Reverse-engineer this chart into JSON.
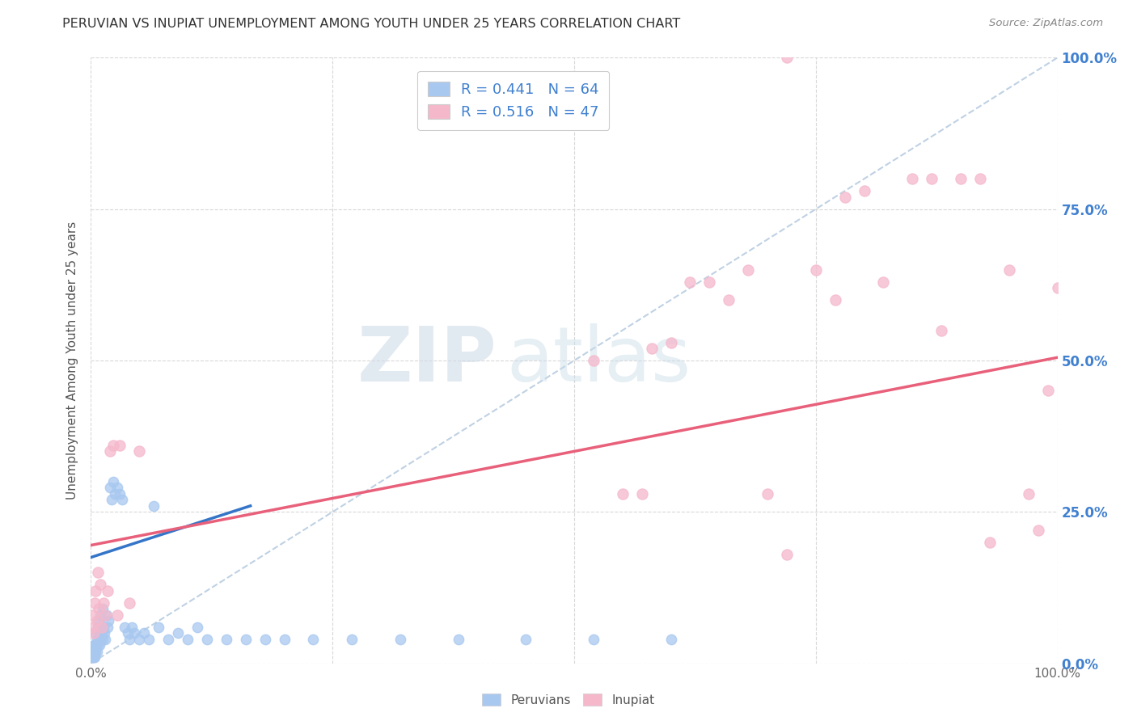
{
  "title": "PERUVIAN VS INUPIAT UNEMPLOYMENT AMONG YOUTH UNDER 25 YEARS CORRELATION CHART",
  "source": "Source: ZipAtlas.com",
  "ylabel": "Unemployment Among Youth under 25 years",
  "watermark_zip": "ZIP",
  "watermark_atlas": "atlas",
  "xlim": [
    0,
    1
  ],
  "ylim": [
    0,
    1
  ],
  "xtick_positions": [
    0.0,
    0.25,
    0.5,
    0.75,
    1.0
  ],
  "xtick_labels": [
    "0.0%",
    "",
    "",
    "",
    "100.0%"
  ],
  "ytick_positions": [
    0.0,
    0.25,
    0.5,
    0.75,
    1.0
  ],
  "right_ytick_labels": [
    "0.0%",
    "25.0%",
    "50.0%",
    "75.0%",
    "100.0%"
  ],
  "legend_R1": "R = 0.441",
  "legend_N1": "N = 64",
  "legend_R2": "R = 0.516",
  "legend_N2": "N = 47",
  "peruvian_color": "#a8c8f0",
  "inupiat_color": "#f5b8cb",
  "peruvian_line_color": "#3575c8",
  "inupiat_line_color": "#e8607a",
  "diagonal_color": "#b8cce0",
  "background_color": "#ffffff",
  "grid_color": "#d8d8d8",
  "title_color": "#333333",
  "right_tick_color": "#4080d0",
  "watermark_zip_color": "#d0dce8",
  "watermark_atlas_color": "#c8dce8",
  "peru_line_x0": 0.0,
  "peru_line_x1": 0.165,
  "peru_line_y0": 0.175,
  "peru_line_y1": 0.26,
  "inupiat_line_x0": 0.0,
  "inupiat_line_x1": 1.0,
  "inupiat_line_y0": 0.195,
  "inupiat_line_y1": 0.505,
  "peruvians_x": [
    0.001,
    0.002,
    0.002,
    0.003,
    0.003,
    0.003,
    0.004,
    0.004,
    0.004,
    0.005,
    0.005,
    0.005,
    0.006,
    0.006,
    0.007,
    0.007,
    0.008,
    0.008,
    0.009,
    0.009,
    0.01,
    0.01,
    0.011,
    0.012,
    0.012,
    0.013,
    0.014,
    0.015,
    0.016,
    0.017,
    0.018,
    0.02,
    0.021,
    0.023,
    0.025,
    0.027,
    0.03,
    0.032,
    0.035,
    0.038,
    0.04,
    0.042,
    0.045,
    0.05,
    0.055,
    0.06,
    0.065,
    0.07,
    0.08,
    0.09,
    0.1,
    0.11,
    0.12,
    0.14,
    0.16,
    0.18,
    0.2,
    0.23,
    0.27,
    0.32,
    0.38,
    0.45,
    0.52,
    0.6
  ],
  "peruvians_y": [
    0.01,
    0.01,
    0.02,
    0.01,
    0.02,
    0.03,
    0.01,
    0.02,
    0.03,
    0.02,
    0.03,
    0.05,
    0.02,
    0.04,
    0.03,
    0.06,
    0.04,
    0.07,
    0.03,
    0.05,
    0.04,
    0.08,
    0.05,
    0.04,
    0.09,
    0.06,
    0.05,
    0.04,
    0.08,
    0.06,
    0.07,
    0.29,
    0.27,
    0.3,
    0.28,
    0.29,
    0.28,
    0.27,
    0.06,
    0.05,
    0.04,
    0.06,
    0.05,
    0.04,
    0.05,
    0.04,
    0.26,
    0.06,
    0.04,
    0.05,
    0.04,
    0.06,
    0.04,
    0.04,
    0.04,
    0.04,
    0.04,
    0.04,
    0.04,
    0.04,
    0.04,
    0.04,
    0.04,
    0.04
  ],
  "inupiat_x": [
    0.001,
    0.002,
    0.003,
    0.004,
    0.005,
    0.006,
    0.007,
    0.008,
    0.01,
    0.011,
    0.013,
    0.015,
    0.017,
    0.02,
    0.023,
    0.027,
    0.03,
    0.04,
    0.05,
    0.52,
    0.55,
    0.57,
    0.58,
    0.6,
    0.62,
    0.64,
    0.66,
    0.68,
    0.7,
    0.72,
    0.72,
    0.75,
    0.77,
    0.78,
    0.8,
    0.82,
    0.85,
    0.87,
    0.88,
    0.9,
    0.92,
    0.93,
    0.95,
    0.97,
    0.98,
    0.99,
    1.0
  ],
  "inupiat_y": [
    0.06,
    0.08,
    0.05,
    0.1,
    0.12,
    0.07,
    0.15,
    0.09,
    0.13,
    0.06,
    0.1,
    0.08,
    0.12,
    0.35,
    0.36,
    0.08,
    0.36,
    0.1,
    0.35,
    0.5,
    0.28,
    0.28,
    0.52,
    0.53,
    0.63,
    0.63,
    0.6,
    0.65,
    0.28,
    0.18,
    1.0,
    0.65,
    0.6,
    0.77,
    0.78,
    0.63,
    0.8,
    0.8,
    0.55,
    0.8,
    0.8,
    0.2,
    0.65,
    0.28,
    0.22,
    0.45,
    0.62
  ]
}
